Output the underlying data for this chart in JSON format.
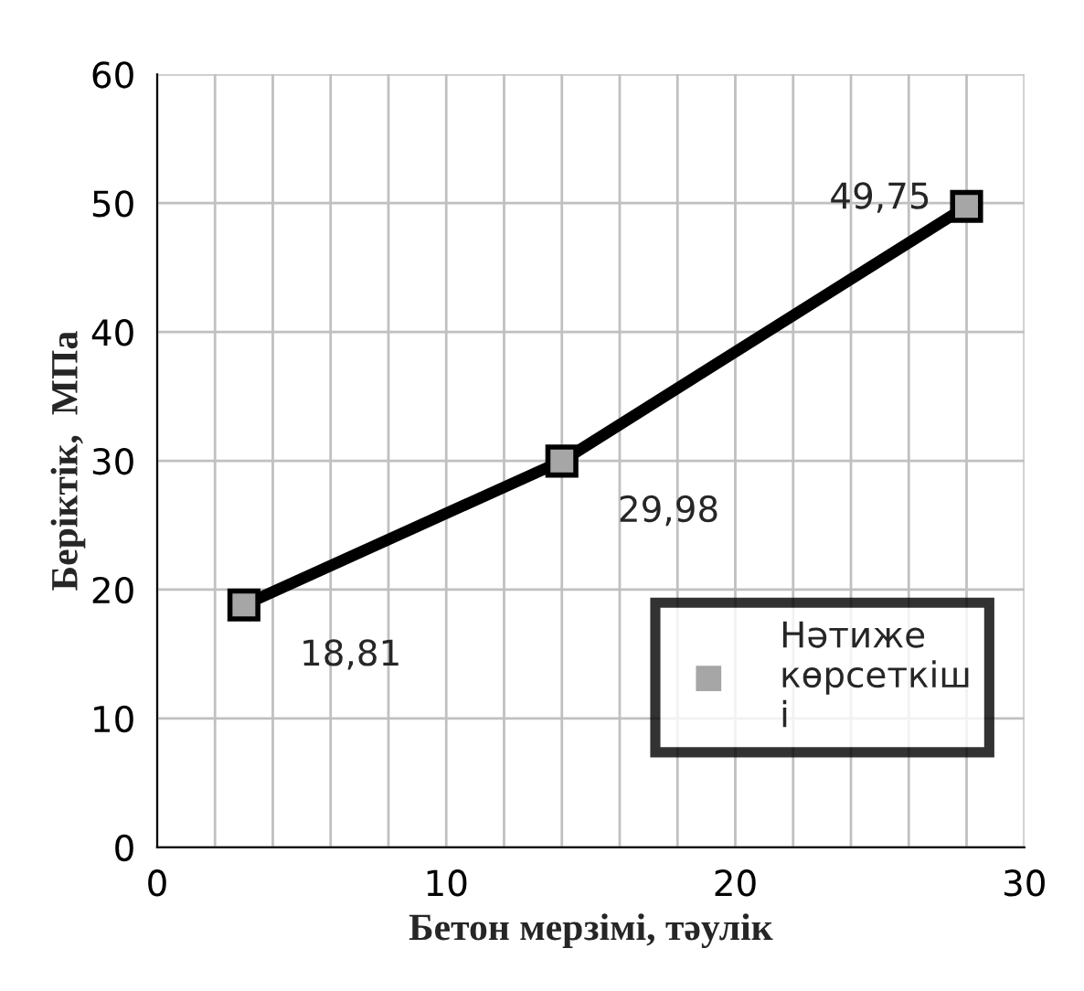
{
  "chart_data": {
    "type": "line",
    "xlabel": "Бетон мерзімі, тәулік",
    "ylabel": "Беріктік,  МПа",
    "x": [
      3,
      14,
      28
    ],
    "series": [
      {
        "name": "Нәтиже\nкөрсеткіш\nі",
        "color": "#000000",
        "values": [
          18.81,
          29.98,
          49.75
        ],
        "value_labels": [
          "18,81",
          "29,98",
          "49,75"
        ]
      }
    ],
    "xlim": [
      0,
      30
    ],
    "xticks": [
      0,
      {
        "value": 2,
        "label": null
      },
      {
        "value": 4,
        "label": null
      },
      {
        "value": 6,
        "label": null
      },
      {
        "value": 8,
        "label": null
      },
      10,
      {
        "value": 12,
        "label": null
      },
      {
        "value": 14,
        "label": null
      },
      {
        "value": 16,
        "label": null
      },
      {
        "value": 18,
        "label": null
      },
      20,
      {
        "value": 22,
        "label": null
      },
      {
        "value": 24,
        "label": null
      },
      {
        "value": 26,
        "label": null
      },
      {
        "value": 28,
        "label": null
      },
      30
    ],
    "ylim": [
      0,
      60
    ],
    "yticks": [
      0,
      10,
      20,
      30,
      40,
      50,
      60
    ],
    "grid": true,
    "legend": "bottom right",
    "marker": "square",
    "line_style": "solid"
  }
}
